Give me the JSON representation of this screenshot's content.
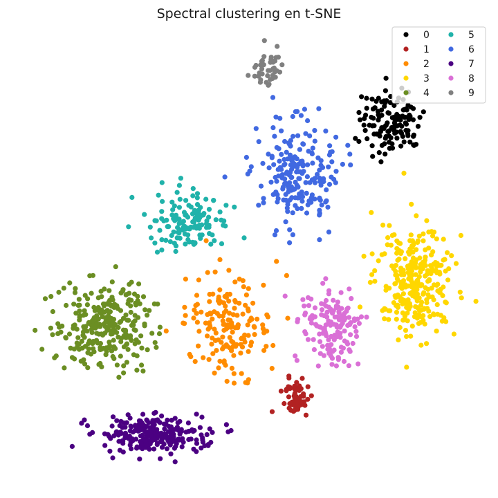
{
  "chart_data": {
    "type": "scatter",
    "title": "Spectral clustering en t-SNE",
    "xlabel": "",
    "ylabel": "",
    "axes_visible": false,
    "grid": false,
    "legend": {
      "placement": "top-right",
      "columns": 2
    },
    "series": [
      {
        "name": "0",
        "color": "#000000",
        "center": [
          565,
          175
        ],
        "spread": [
          36,
          38
        ],
        "count": 130
      },
      {
        "name": "1",
        "color": "#b22222",
        "center": [
          428,
          578
        ],
        "spread": [
          16,
          24
        ],
        "count": 60
      },
      {
        "name": "2",
        "color": "#ff8c00",
        "center": [
          330,
          470
        ],
        "spread": [
          50,
          58
        ],
        "count": 170
      },
      {
        "name": "3",
        "color": "#ffd700",
        "center": [
          600,
          405
        ],
        "spread": [
          45,
          62
        ],
        "count": 300
      },
      {
        "name": "4",
        "color": "#6b8e23",
        "center": [
          150,
          470
        ],
        "spread": [
          55,
          52
        ],
        "count": 280
      },
      {
        "name": "5",
        "color": "#20b2aa",
        "center": [
          275,
          320
        ],
        "spread": [
          48,
          32
        ],
        "count": 135
      },
      {
        "name": "6",
        "color": "#4169e1",
        "center": [
          430,
          250
        ],
        "spread": [
          45,
          60
        ],
        "count": 210
      },
      {
        "name": "7",
        "color": "#4b0082",
        "center": [
          220,
          628
        ],
        "spread": [
          62,
          22
        ],
        "count": 240
      },
      {
        "name": "8",
        "color": "#da70d6",
        "center": [
          478,
          470
        ],
        "spread": [
          32,
          45
        ],
        "count": 150
      },
      {
        "name": "9",
        "color": "#808080",
        "center": [
          388,
          100
        ],
        "spread": [
          18,
          28
        ],
        "count": 45
      }
    ]
  }
}
